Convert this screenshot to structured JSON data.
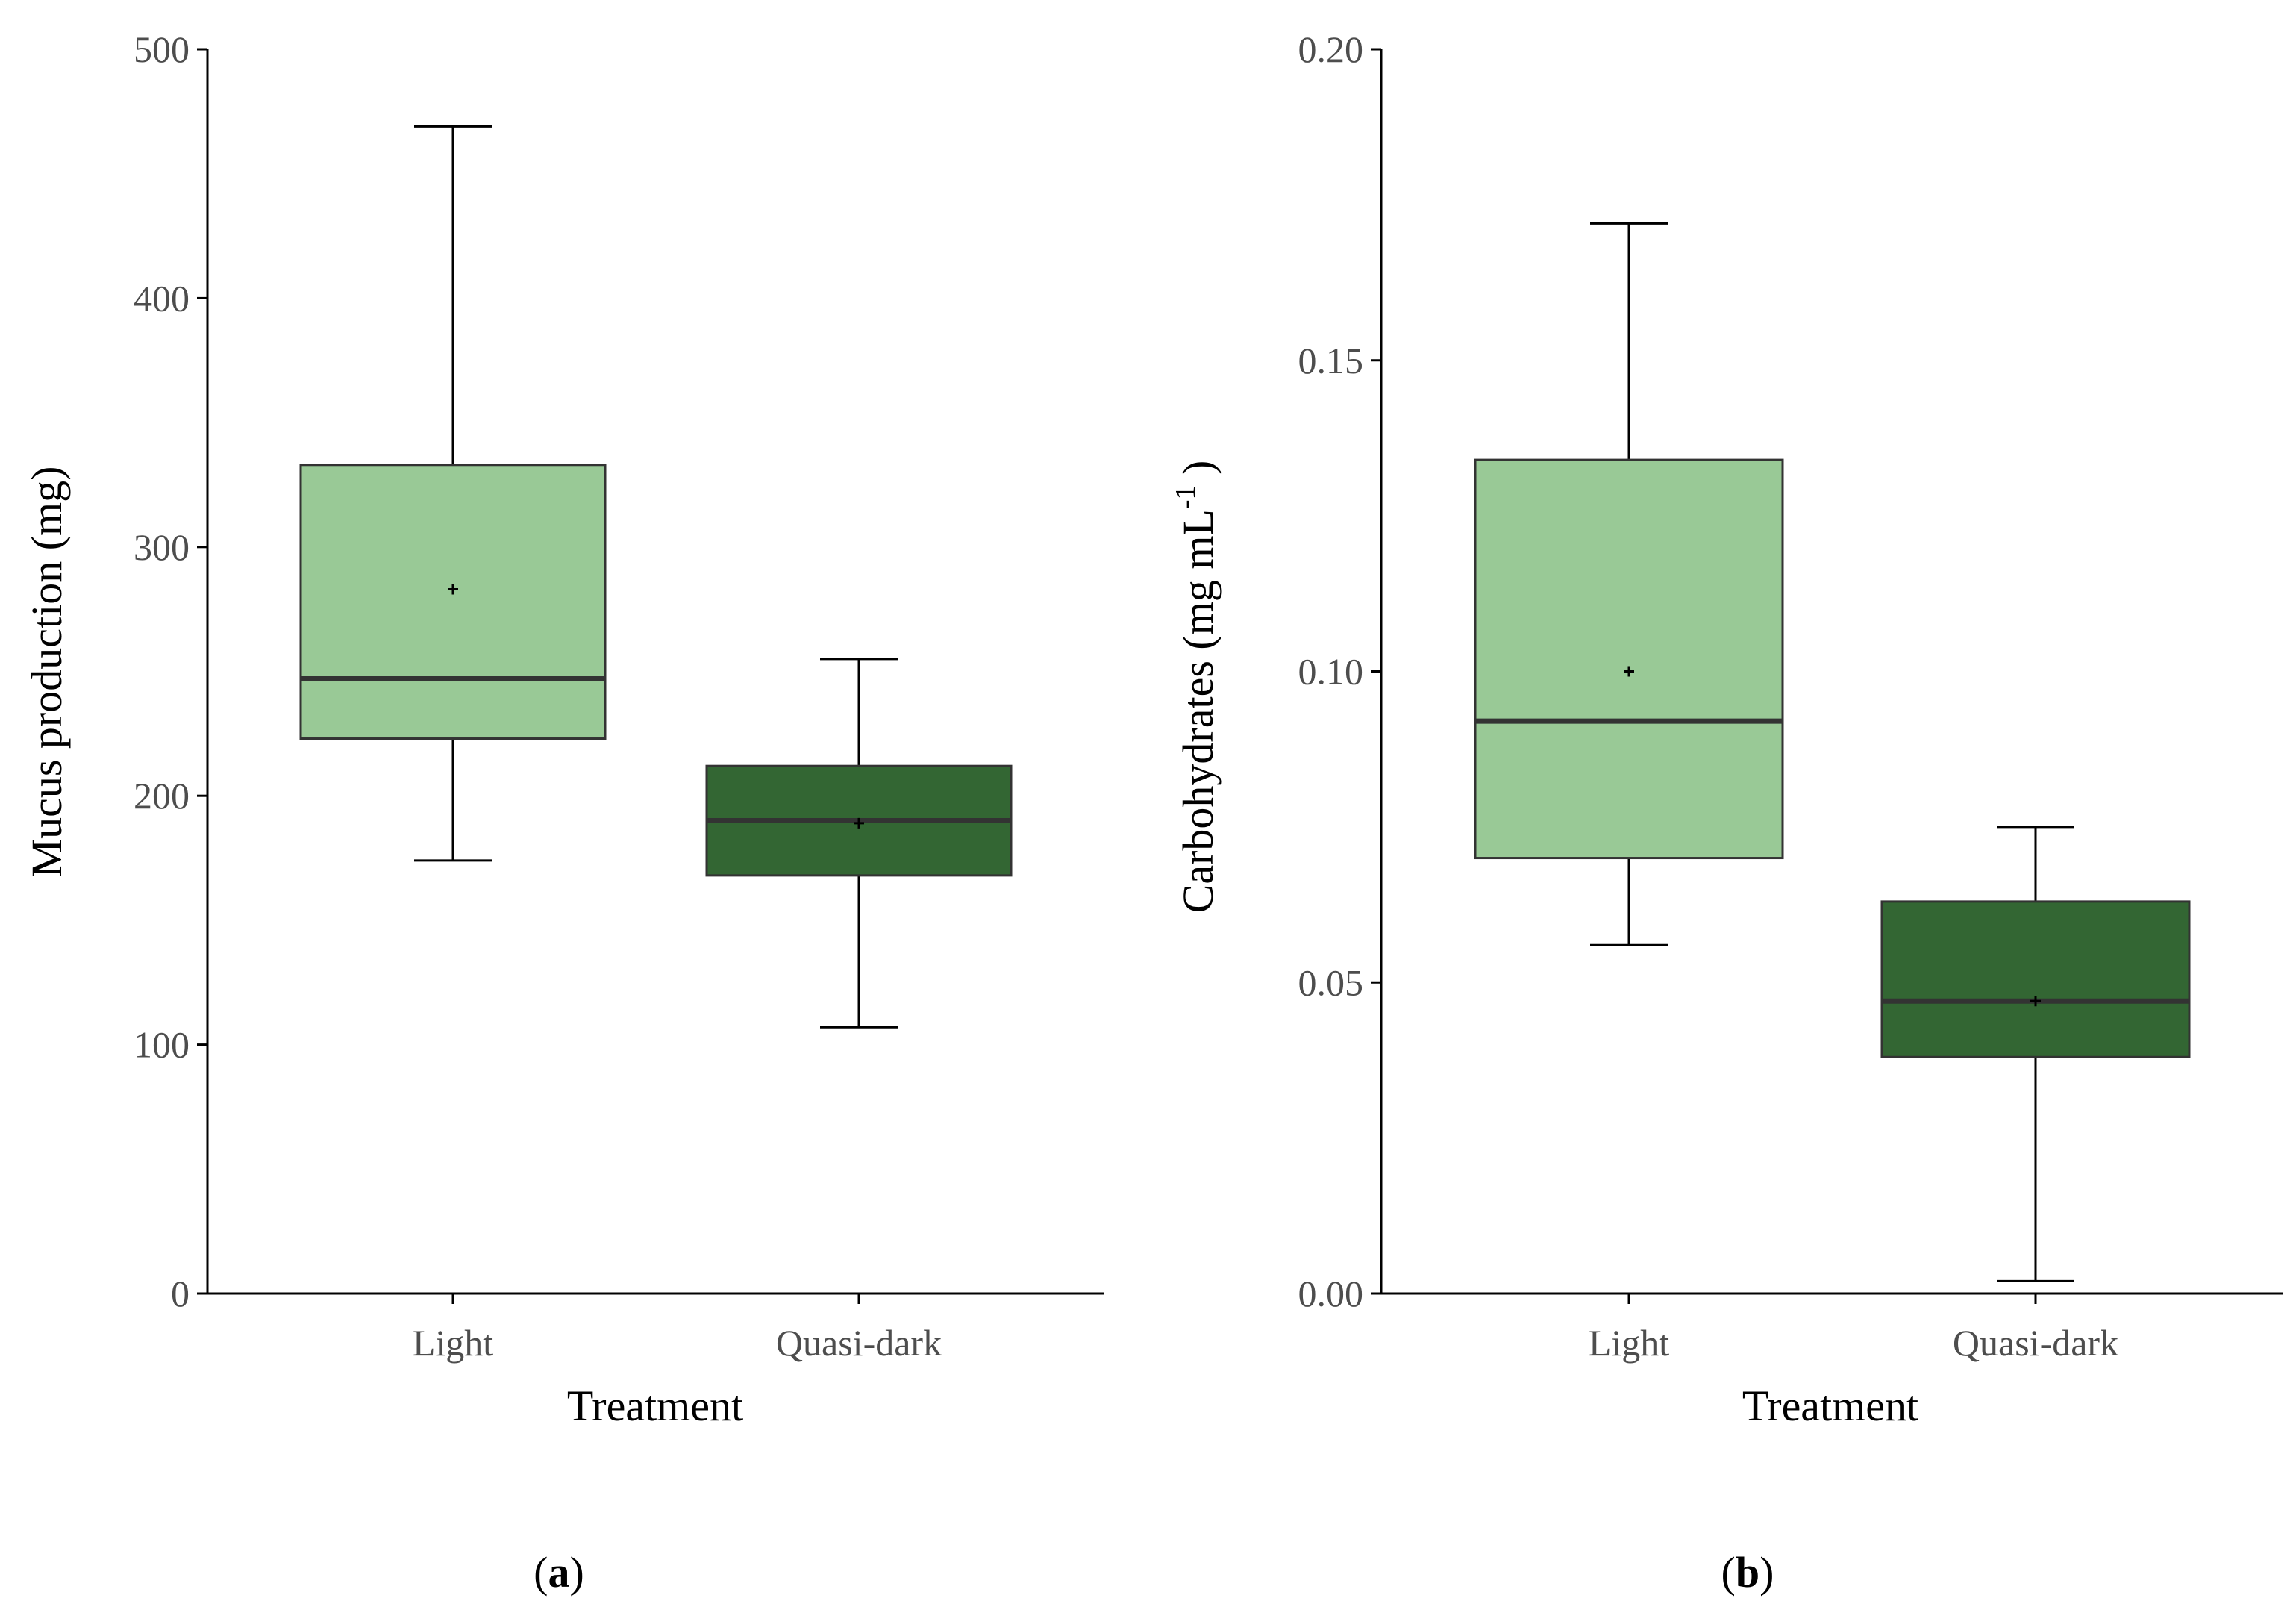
{
  "chart_data": [
    {
      "type": "box",
      "panel_label": "a",
      "categories": [
        "Light",
        "Quasi-dark"
      ],
      "xlabel": "Treatment",
      "ylabel": "Mucus production (mg)",
      "ylim": [
        0,
        500
      ],
      "yticks": [
        0,
        100,
        200,
        300,
        400,
        500
      ],
      "ytick_labels": [
        "0",
        "100",
        "200",
        "300",
        "400",
        "500"
      ],
      "grid": false,
      "boxes": [
        {
          "category": "Light",
          "whisker_low": 174,
          "q1": 223,
          "median": 247,
          "mean": 283,
          "q3": 333,
          "whisker_high": 469,
          "color": "#99c996"
        },
        {
          "category": "Quasi-dark",
          "whisker_low": 107,
          "q1": 168,
          "median": 190,
          "mean": 189,
          "q3": 212,
          "whisker_high": 255,
          "color": "#336633"
        }
      ]
    },
    {
      "type": "box",
      "panel_label": "b",
      "categories": [
        "Light",
        "Quasi-dark"
      ],
      "xlabel": "Treatment",
      "ylabel_main": "Carbohydrates (mg mL",
      "ylabel_sup": "-1",
      "ylabel_end": " )",
      "ylim": [
        0,
        0.2
      ],
      "yticks": [
        0,
        0.05,
        0.1,
        0.15,
        0.2
      ],
      "ytick_labels": [
        "0.00",
        "0.05",
        "0.10",
        "0.15",
        "0.20"
      ],
      "grid": false,
      "boxes": [
        {
          "category": "Light",
          "whisker_low": 0.056,
          "q1": 0.07,
          "median": 0.092,
          "mean": 0.1,
          "q3": 0.134,
          "whisker_high": 0.172,
          "color": "#99c996"
        },
        {
          "category": "Quasi-dark",
          "whisker_low": 0.002,
          "q1": 0.038,
          "median": 0.047,
          "mean": 0.047,
          "q3": 0.063,
          "whisker_high": 0.075,
          "color": "#336633"
        }
      ]
    }
  ]
}
